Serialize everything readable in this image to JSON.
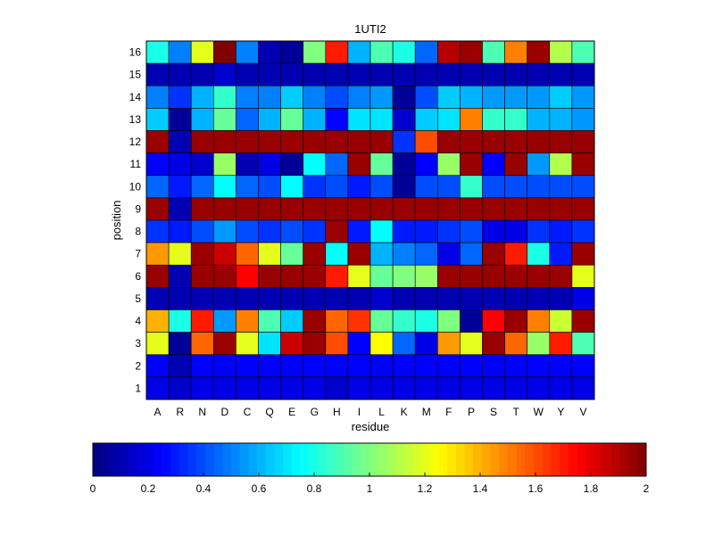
{
  "chart_data": {
    "type": "heatmap",
    "title": "1UTI2",
    "xlabel": "residue",
    "ylabel": "position",
    "x_categories": [
      "A",
      "R",
      "N",
      "D",
      "C",
      "Q",
      "E",
      "G",
      "H",
      "I",
      "L",
      "K",
      "M",
      "F",
      "P",
      "S",
      "T",
      "W",
      "Y",
      "V"
    ],
    "y_categories": [
      "16",
      "15",
      "14",
      "13",
      "12",
      "11",
      "10",
      "9",
      "8",
      "7",
      "6",
      "5",
      "4",
      "3",
      "2",
      "1"
    ],
    "values": [
      [
        0.8,
        0.5,
        1.2,
        2.0,
        0.5,
        0.1,
        0.05,
        1.0,
        1.7,
        0.6,
        0.9,
        0.8,
        0.45,
        1.9,
        1.95,
        0.9,
        1.5,
        1.95,
        1.1,
        0.9
      ],
      [
        0.1,
        0.1,
        0.1,
        0.15,
        0.1,
        0.1,
        0.1,
        0.1,
        0.1,
        0.1,
        0.1,
        0.1,
        0.1,
        0.1,
        0.1,
        0.1,
        0.1,
        0.1,
        0.1,
        0.1
      ],
      [
        0.5,
        0.35,
        0.6,
        0.85,
        0.5,
        0.5,
        0.65,
        0.5,
        0.4,
        0.5,
        0.55,
        0.05,
        0.4,
        0.65,
        0.6,
        0.55,
        0.55,
        0.55,
        0.65,
        0.55
      ],
      [
        0.65,
        0.05,
        0.6,
        0.95,
        0.45,
        0.6,
        0.95,
        0.6,
        0.25,
        0.7,
        0.7,
        0.15,
        0.65,
        0.7,
        1.5,
        0.85,
        0.85,
        0.6,
        0.6,
        0.55
      ],
      [
        1.95,
        0.1,
        1.95,
        1.95,
        1.95,
        1.95,
        1.95,
        1.95,
        1.95,
        1.95,
        1.95,
        0.35,
        1.6,
        1.95,
        1.95,
        1.95,
        1.95,
        1.95,
        1.95,
        1.95
      ],
      [
        0.25,
        0.2,
        0.15,
        1.05,
        0.1,
        0.2,
        0.05,
        0.75,
        0.45,
        1.95,
        0.95,
        0.05,
        0.25,
        1.05,
        1.95,
        0.25,
        1.95,
        0.55,
        1.1,
        1.95
      ],
      [
        0.45,
        0.3,
        0.45,
        0.75,
        0.45,
        0.4,
        0.75,
        0.35,
        0.4,
        0.3,
        0.4,
        0.05,
        0.4,
        0.4,
        0.85,
        0.4,
        0.4,
        0.4,
        0.4,
        0.4
      ],
      [
        1.95,
        0.1,
        1.95,
        1.95,
        1.95,
        1.95,
        1.95,
        1.95,
        1.95,
        1.95,
        1.95,
        1.95,
        1.95,
        1.95,
        1.95,
        1.95,
        1.95,
        1.95,
        1.95,
        1.95
      ],
      [
        0.35,
        0.3,
        0.4,
        0.55,
        0.4,
        0.35,
        0.4,
        0.35,
        1.95,
        0.3,
        0.75,
        0.3,
        0.3,
        0.35,
        0.4,
        0.2,
        0.2,
        0.35,
        0.3,
        0.35
      ],
      [
        1.45,
        1.2,
        1.95,
        1.85,
        1.55,
        1.2,
        0.95,
        1.95,
        0.75,
        1.95,
        0.6,
        0.5,
        0.45,
        0.2,
        0.45,
        1.95,
        1.7,
        0.8,
        0.3,
        1.95
      ],
      [
        1.95,
        0.1,
        1.95,
        1.95,
        1.75,
        1.95,
        1.95,
        1.95,
        1.7,
        1.2,
        0.95,
        1.0,
        1.05,
        1.95,
        1.95,
        1.95,
        1.95,
        1.95,
        1.95,
        1.2
      ],
      [
        0.1,
        0.1,
        0.1,
        0.1,
        0.1,
        0.1,
        0.1,
        0.1,
        0.1,
        0.1,
        0.15,
        0.1,
        0.1,
        0.1,
        0.1,
        0.1,
        0.1,
        0.1,
        0.1,
        0.2
      ],
      [
        1.4,
        0.8,
        1.7,
        0.55,
        1.5,
        0.9,
        0.65,
        1.95,
        1.55,
        1.65,
        0.95,
        0.85,
        0.8,
        1.0,
        0.05,
        1.75,
        1.95,
        1.5,
        1.15,
        1.95
      ],
      [
        1.2,
        0.05,
        1.55,
        1.95,
        1.2,
        0.7,
        1.85,
        1.95,
        1.6,
        0.25,
        1.25,
        0.45,
        0.2,
        1.45,
        1.2,
        1.95,
        1.55,
        1.05,
        1.7,
        0.9
      ],
      [
        0.25,
        0.1,
        0.25,
        0.25,
        0.25,
        0.25,
        0.25,
        0.25,
        0.25,
        0.25,
        0.25,
        0.25,
        0.25,
        0.25,
        0.25,
        0.25,
        0.25,
        0.25,
        0.25,
        0.25
      ],
      [
        0.2,
        0.15,
        0.2,
        0.2,
        0.2,
        0.2,
        0.2,
        0.2,
        0.15,
        0.2,
        0.2,
        0.2,
        0.2,
        0.2,
        0.2,
        0.2,
        0.2,
        0.2,
        0.2,
        0.2
      ]
    ],
    "colormap": "jet",
    "clim": [
      0,
      2
    ],
    "colorbar_orientation": "horizontal",
    "colorbar_ticks": [
      "0",
      "0.2",
      "0.4",
      "0.6",
      "0.8",
      "1",
      "1.2",
      "1.4",
      "1.6",
      "1.8",
      "2"
    ],
    "grid": false
  }
}
